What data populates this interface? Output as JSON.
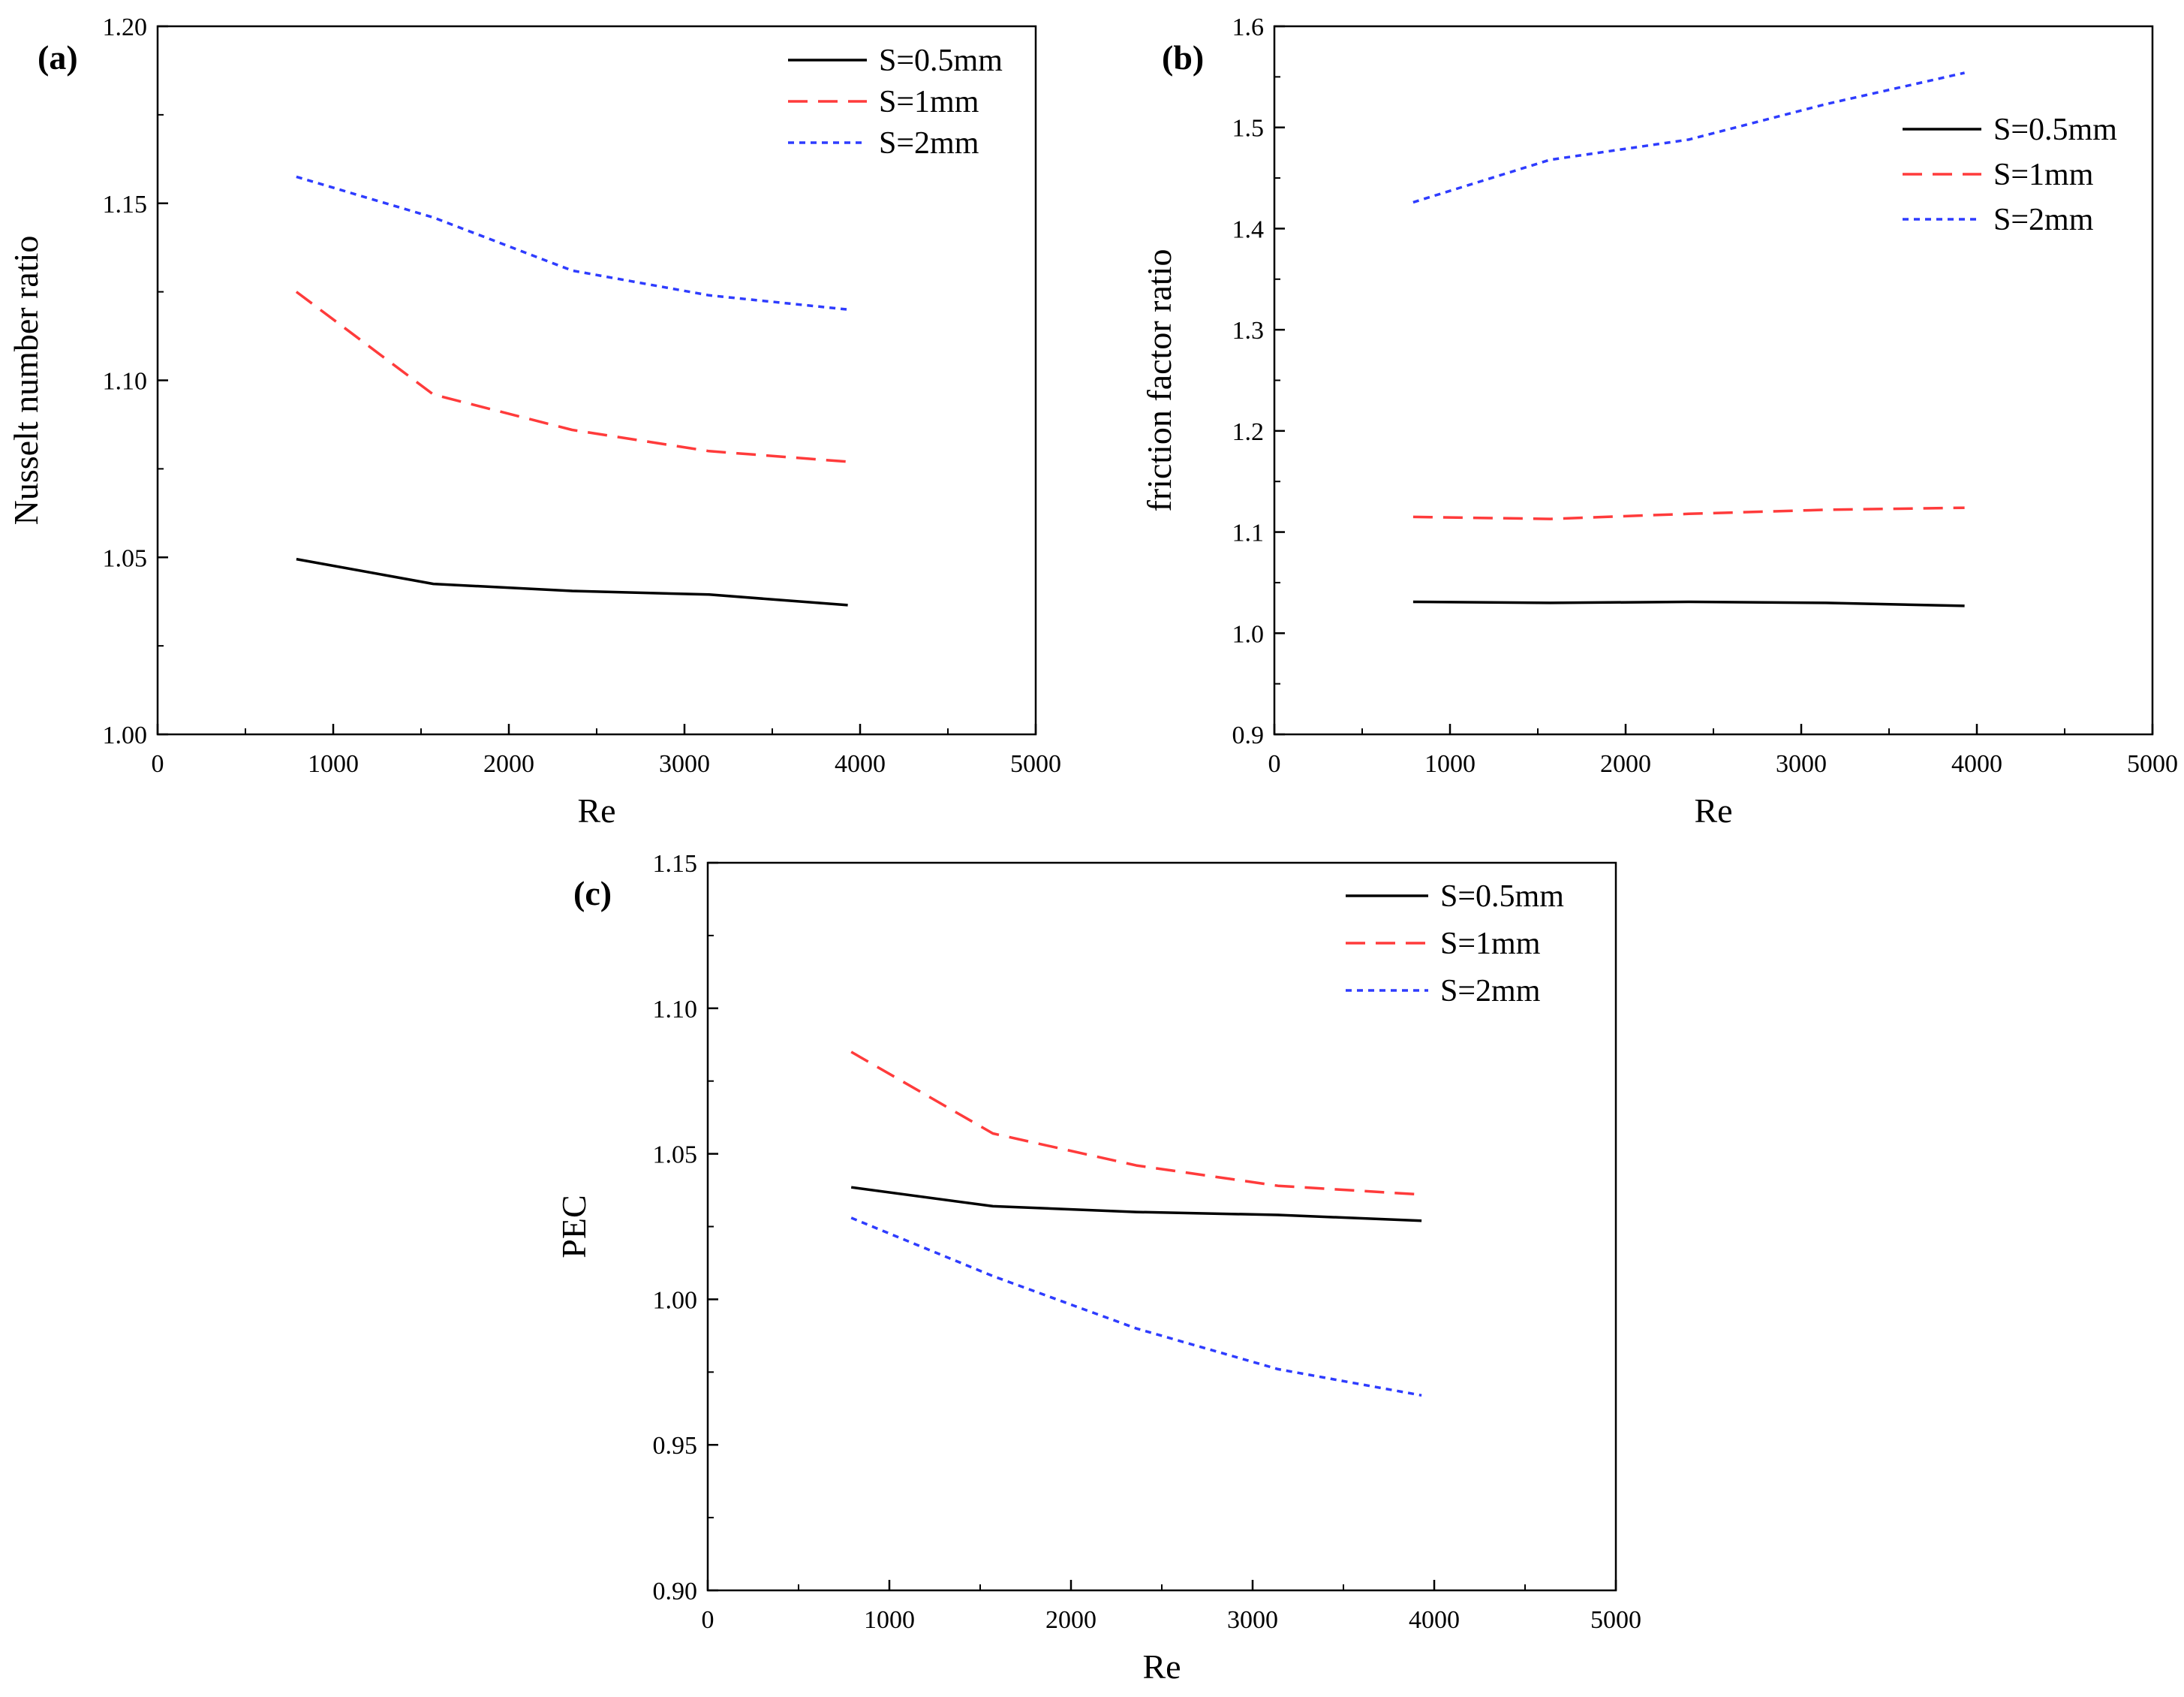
{
  "colors": {
    "s05": "#000000",
    "s1": "#ff3b3b",
    "s2": "#2e3cff",
    "axis": "#000000",
    "background": "#ffffff"
  },
  "chart_data": [
    {
      "type": "line",
      "panel_label": "(a)",
      "title": "",
      "xlabel": "Re",
      "ylabel": "Nusselt number ratio",
      "xlim": [
        0,
        5000
      ],
      "ylim": [
        1.0,
        1.2
      ],
      "xticks": [
        "0",
        "1000",
        "2000",
        "3000",
        "4000",
        "5000"
      ],
      "yticks": [
        "1.00",
        "1.05",
        "1.10",
        "1.15",
        "1.20"
      ],
      "legend_position": "top-right",
      "series": [
        {
          "name": "S=0.5mm",
          "style": "solid",
          "color": "#000000",
          "x": [
            790,
            1570,
            2360,
            3140,
            3930
          ],
          "y": [
            1.0495,
            1.0425,
            1.0405,
            1.0395,
            1.0365
          ]
        },
        {
          "name": "S=1mm",
          "style": "dashed",
          "color": "#ff3b3b",
          "x": [
            790,
            1570,
            2360,
            3140,
            3930
          ],
          "y": [
            1.125,
            1.096,
            1.086,
            1.08,
            1.077
          ]
        },
        {
          "name": "S=2mm",
          "style": "dotted",
          "color": "#2e3cff",
          "x": [
            790,
            1570,
            2360,
            3140,
            3930
          ],
          "y": [
            1.1575,
            1.146,
            1.131,
            1.124,
            1.12
          ]
        }
      ]
    },
    {
      "type": "line",
      "panel_label": "(b)",
      "title": "",
      "xlabel": "Re",
      "ylabel": "friction factor ratio",
      "xlim": [
        0,
        5000
      ],
      "ylim": [
        0.9,
        1.6
      ],
      "xticks": [
        "0",
        "1000",
        "2000",
        "3000",
        "4000",
        "5000"
      ],
      "yticks": [
        "0.9",
        "1.0",
        "1.1",
        "1.2",
        "1.3",
        "1.4",
        "1.5",
        "1.6"
      ],
      "legend_position": "top-right",
      "series": [
        {
          "name": "S=0.5mm",
          "style": "solid",
          "color": "#000000",
          "x": [
            790,
            1570,
            2360,
            3140,
            3930
          ],
          "y": [
            1.031,
            1.03,
            1.031,
            1.03,
            1.027
          ]
        },
        {
          "name": "S=1mm",
          "style": "dashed",
          "color": "#ff3b3b",
          "x": [
            790,
            1570,
            2360,
            3140,
            3930
          ],
          "y": [
            1.115,
            1.113,
            1.118,
            1.122,
            1.124
          ]
        },
        {
          "name": "S=2mm",
          "style": "dotted",
          "color": "#2e3cff",
          "x": [
            790,
            1570,
            2360,
            3140,
            3930
          ],
          "y": [
            1.426,
            1.468,
            1.488,
            1.523,
            1.554
          ]
        }
      ]
    },
    {
      "type": "line",
      "panel_label": "(c)",
      "title": "",
      "xlabel": "Re",
      "ylabel": "PEC",
      "xlim": [
        0,
        5000
      ],
      "ylim": [
        0.9,
        1.15
      ],
      "xticks": [
        "0",
        "1000",
        "2000",
        "3000",
        "4000",
        "5000"
      ],
      "yticks": [
        "0.90",
        "0.95",
        "1.00",
        "1.05",
        "1.10",
        "1.15"
      ],
      "legend_position": "top-right",
      "series": [
        {
          "name": "S=0.5mm",
          "style": "solid",
          "color": "#000000",
          "x": [
            790,
            1570,
            2360,
            3140,
            3930
          ],
          "y": [
            1.0385,
            1.032,
            1.03,
            1.029,
            1.027
          ]
        },
        {
          "name": "S=1mm",
          "style": "dashed",
          "color": "#ff3b3b",
          "x": [
            790,
            1570,
            2360,
            3140,
            3930
          ],
          "y": [
            1.085,
            1.057,
            1.046,
            1.039,
            1.036
          ]
        },
        {
          "name": "S=2mm",
          "style": "dotted",
          "color": "#2e3cff",
          "x": [
            790,
            1570,
            2360,
            3140,
            3930
          ],
          "y": [
            1.028,
            1.008,
            0.99,
            0.976,
            0.967
          ]
        }
      ]
    }
  ]
}
